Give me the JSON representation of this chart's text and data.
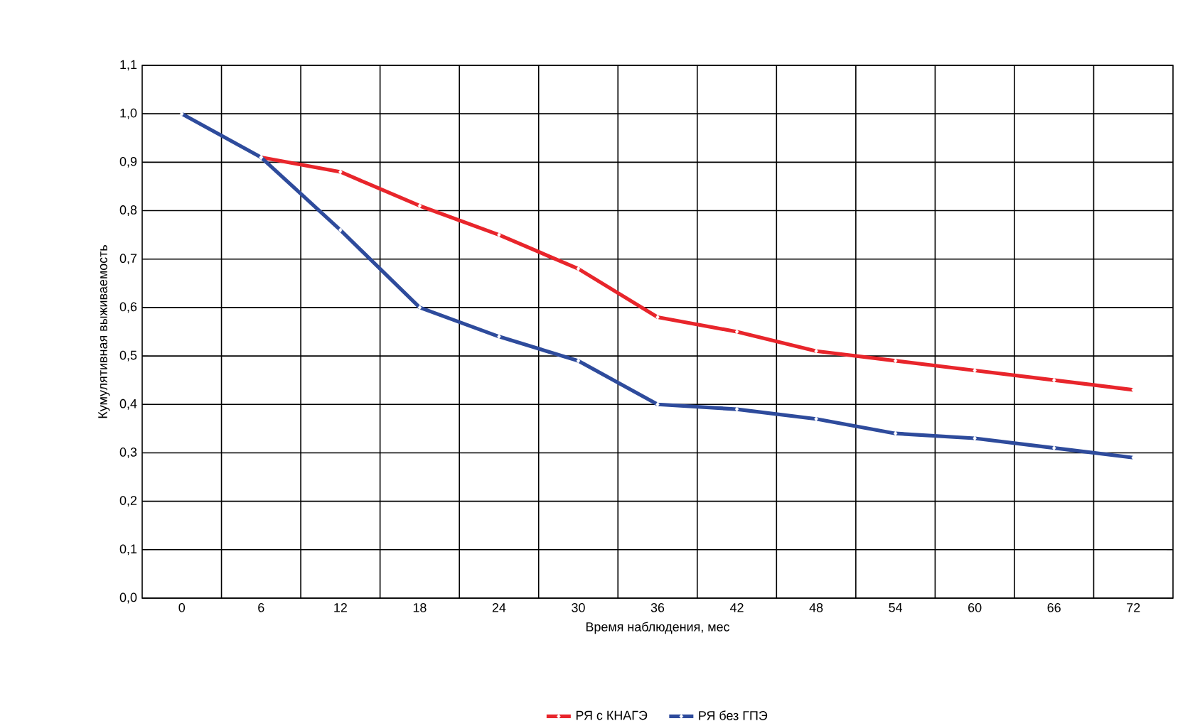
{
  "chart_data": {
    "type": "line",
    "xlabel": "Время наблюдения, мес",
    "ylabel": "Кумулятивная выживаемость",
    "categories": [
      "0",
      "6",
      "12",
      "18",
      "24",
      "30",
      "36",
      "42",
      "48",
      "54",
      "60",
      "66",
      "72"
    ],
    "series": [
      {
        "name": "РЯ с КНАГЭ",
        "color": "#e8252b",
        "values": [
          null,
          0.91,
          0.88,
          0.81,
          0.75,
          0.68,
          0.58,
          0.55,
          0.51,
          0.49,
          0.47,
          0.45,
          0.43
        ]
      },
      {
        "name": "РЯ без ГПЭ",
        "color": "#2e4b9c",
        "values": [
          1.0,
          0.91,
          0.76,
          0.6,
          0.54,
          0.49,
          0.4,
          0.39,
          0.37,
          0.34,
          0.33,
          0.31,
          0.29
        ]
      }
    ],
    "ylim": [
      0,
      1.1
    ],
    "yticks": [
      {
        "value": 0,
        "label": "0,0"
      },
      {
        "value": 0.1,
        "label": "0,1"
      },
      {
        "value": 0.2,
        "label": "0,2"
      },
      {
        "value": 0.3,
        "label": "0,3"
      },
      {
        "value": 0.4,
        "label": "0,4"
      },
      {
        "value": 0.5,
        "label": "0,5"
      },
      {
        "value": 0.6,
        "label": "0,6"
      },
      {
        "value": 0.7,
        "label": "0,7"
      },
      {
        "value": 0.8,
        "label": "0,8"
      },
      {
        "value": 0.9,
        "label": "0,9"
      },
      {
        "value": 1.0,
        "label": "1,0"
      },
      {
        "value": 1.1,
        "label": "1,1"
      }
    ],
    "grid": true,
    "legend": "bottom",
    "marker": "diamond",
    "line_style": "solid"
  }
}
